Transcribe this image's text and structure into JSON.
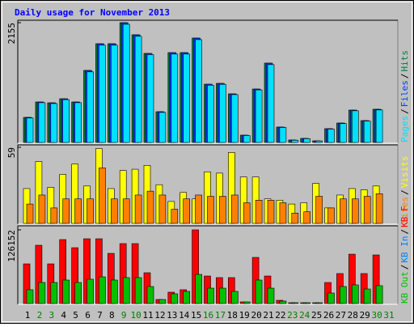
{
  "chart_data": [
    {
      "type": "bar",
      "title": "Daily usage for November 2013",
      "ylim": [
        0,
        2155
      ],
      "yticks": [
        2155
      ],
      "legend_separator": "/",
      "series": [
        {
          "name": "Hits",
          "color": "#008040",
          "values": [
            451,
            728,
            713,
            786,
            728,
            1296,
            1776,
            1776,
            2155,
            1937,
            1602,
            553,
            1616,
            1616,
            1878,
            1048,
            1063,
            874,
            131,
            961,
            1427,
            277,
            44,
            73,
            29,
            248,
            349,
            582,
            393,
            597,
            null
          ]
        },
        {
          "name": "Files",
          "color": "#0040ff",
          "values": [
            451,
            728,
            713,
            786,
            728,
            1296,
            1776,
            1776,
            2155,
            1937,
            1602,
            553,
            1616,
            1616,
            1878,
            1048,
            1063,
            874,
            131,
            961,
            1427,
            277,
            44,
            73,
            29,
            248,
            349,
            582,
            393,
            597,
            null
          ]
        },
        {
          "name": "Pages",
          "color": "#00e0ff",
          "values": [
            440,
            715,
            700,
            770,
            715,
            1270,
            1750,
            1750,
            2126,
            1910,
            1580,
            540,
            1590,
            1590,
            1850,
            1030,
            1045,
            860,
            125,
            945,
            1400,
            270,
            40,
            68,
            27,
            240,
            340,
            570,
            385,
            585,
            null
          ]
        }
      ]
    },
    {
      "type": "bar",
      "ylim": [
        0,
        59
      ],
      "yticks": [
        59
      ],
      "legend_separator": "/",
      "series": [
        {
          "name": "Visits",
          "color": "#ffff00",
          "values": [
            27,
            48,
            28,
            38,
            46,
            29,
            58,
            27,
            41,
            42,
            45,
            30,
            17,
            24,
            19,
            40,
            39,
            55,
            36,
            36,
            19,
            18,
            15,
            16,
            31,
            12,
            22,
            27,
            26,
            29,
            null
          ]
        },
        {
          "name": "Sites",
          "color": "#ff8000",
          "values": [
            15,
            22,
            12,
            19,
            19,
            19,
            43,
            19,
            19,
            22,
            25,
            22,
            11,
            19,
            22,
            21,
            21,
            22,
            16,
            18,
            18,
            16,
            8,
            9,
            21,
            12,
            19,
            19,
            21,
            23,
            null
          ]
        }
      ]
    },
    {
      "type": "bar",
      "ylim": [
        0,
        126152
      ],
      "yticks": [
        126152
      ],
      "legend_separator": "/",
      "categories": [
        "1",
        "2",
        "3",
        "4",
        "5",
        "6",
        "7",
        "8",
        "9",
        "10",
        "11",
        "12",
        "13",
        "14",
        "15",
        "16",
        "17",
        "18",
        "19",
        "20",
        "21",
        "22",
        "23",
        "24",
        "25",
        "26",
        "27",
        "28",
        "29",
        "30",
        "31"
      ],
      "category_colors": [
        "#000000",
        "#008000",
        "#008000",
        "#000000",
        "#000000",
        "#000000",
        "#000000",
        "#000000",
        "#008000",
        "#008000",
        "#000000",
        "#000000",
        "#000000",
        "#000000",
        "#000000",
        "#008000",
        "#008000",
        "#000000",
        "#000000",
        "#000000",
        "#000000",
        "#000000",
        "#008000",
        "#008000",
        "#000000",
        "#000000",
        "#000000",
        "#000000",
        "#000000",
        "#008000",
        "#008000"
      ],
      "series": [
        {
          "name": "KB F",
          "color": "#ff0000",
          "values": [
            67900,
            99800,
            67900,
            109500,
            95600,
            110900,
            110900,
            85900,
            102600,
            102600,
            52700,
            6900,
            19400,
            23600,
            126152,
            47100,
            44400,
            44400,
            2800,
            79000,
            47100,
            5500,
            1400,
            1400,
            1400,
            36000,
            51300,
            84500,
            51300,
            83200,
            null
          ]
        },
        {
          "name": "KB In",
          "color": "#0080ff",
          "values": [
            0,
            0,
            0,
            0,
            0,
            0,
            0,
            0,
            0,
            0,
            0,
            0,
            0,
            0,
            0,
            0,
            0,
            0,
            0,
            0,
            0,
            0,
            0,
            0,
            0,
            0,
            0,
            0,
            0,
            0,
            null
          ]
        },
        {
          "name": "KB Out",
          "color": "#00c000",
          "values": [
            23600,
            36000,
            36000,
            40200,
            36000,
            41600,
            45700,
            40200,
            44400,
            44400,
            29100,
            6900,
            16600,
            20800,
            49900,
            26300,
            26300,
            20800,
            2800,
            40200,
            26300,
            4200,
            1400,
            1400,
            1400,
            18000,
            29100,
            31900,
            24900,
            30500,
            null
          ]
        }
      ]
    }
  ]
}
